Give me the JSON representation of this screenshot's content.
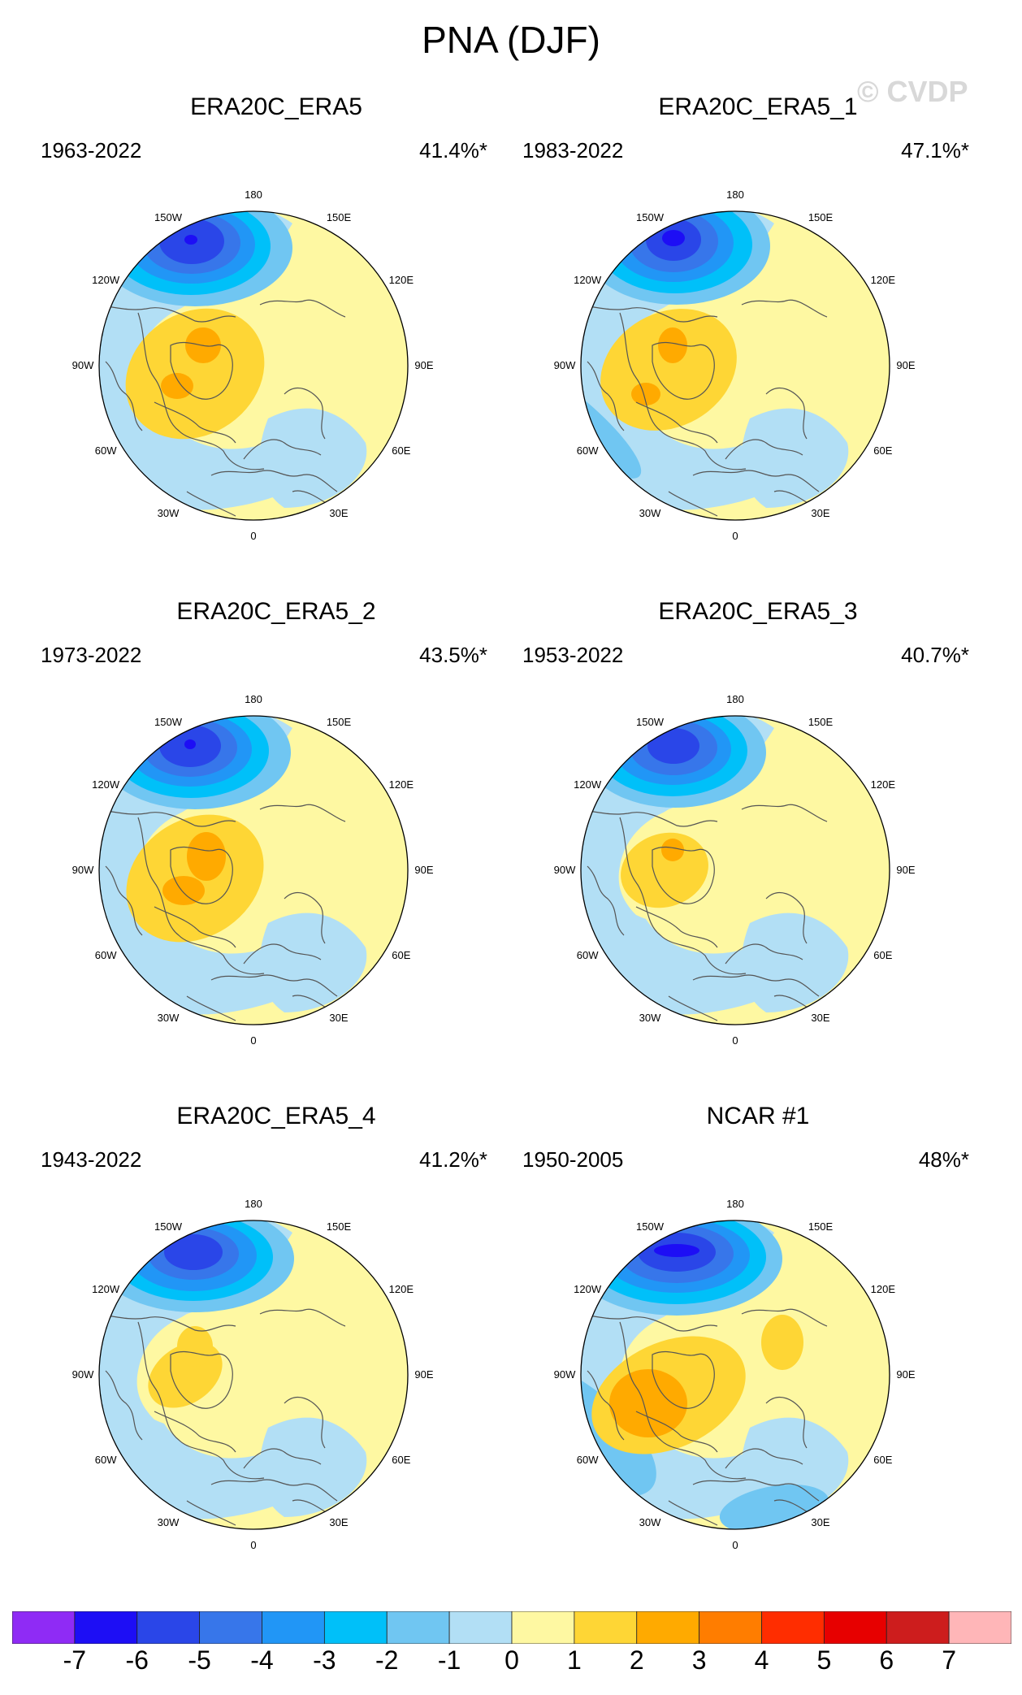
{
  "title": "PNA (DJF)",
  "watermark": "© CVDP",
  "lon_labels": [
    "180",
    "150E",
    "120E",
    "90E",
    "60E",
    "30E",
    "0",
    "30W",
    "60W",
    "90W",
    "120W",
    "150W"
  ],
  "panels": [
    {
      "title": "ERA20C_ERA5",
      "years": "1963-2022",
      "pct": "41.4%*"
    },
    {
      "title": "ERA20C_ERA5_1",
      "years": "1983-2022",
      "pct": "47.1%*"
    },
    {
      "title": "ERA20C_ERA5_2",
      "years": "1973-2022",
      "pct": "43.5%*"
    },
    {
      "title": "ERA20C_ERA5_3",
      "years": "1953-2022",
      "pct": "40.7%*"
    },
    {
      "title": "ERA20C_ERA5_4",
      "years": "1943-2022",
      "pct": "41.2%*"
    },
    {
      "title": "NCAR #1",
      "years": "1950-2005",
      "pct": "48%*"
    }
  ],
  "colorbar": {
    "labels": [
      "-7",
      "-6",
      "-5",
      "-4",
      "-3",
      "-2",
      "-1",
      "0",
      "1",
      "2",
      "3",
      "4",
      "5",
      "6",
      "7"
    ],
    "colors": [
      "#8f2bf5",
      "#1d0ef5",
      "#2a46e8",
      "#3776ea",
      "#2196f6",
      "#00c0f9",
      "#70c6f2",
      "#b2dff5",
      "#fef8a2",
      "#fed635",
      "#ffaa00",
      "#ff7d00",
      "#ff2d00",
      "#e70000",
      "#cd1d1d",
      "#ffb6b8"
    ]
  },
  "palette": {
    "neg1": "#b2dff5",
    "neg2": "#70c6f2",
    "neg3": "#00c0f9",
    "neg4": "#2196f6",
    "neg5": "#3776ea",
    "neg6": "#2a46e8",
    "neg7": "#1d0ef5",
    "pos1": "#fef8a2",
    "pos2": "#fed635",
    "pos3": "#ffaa00"
  }
}
